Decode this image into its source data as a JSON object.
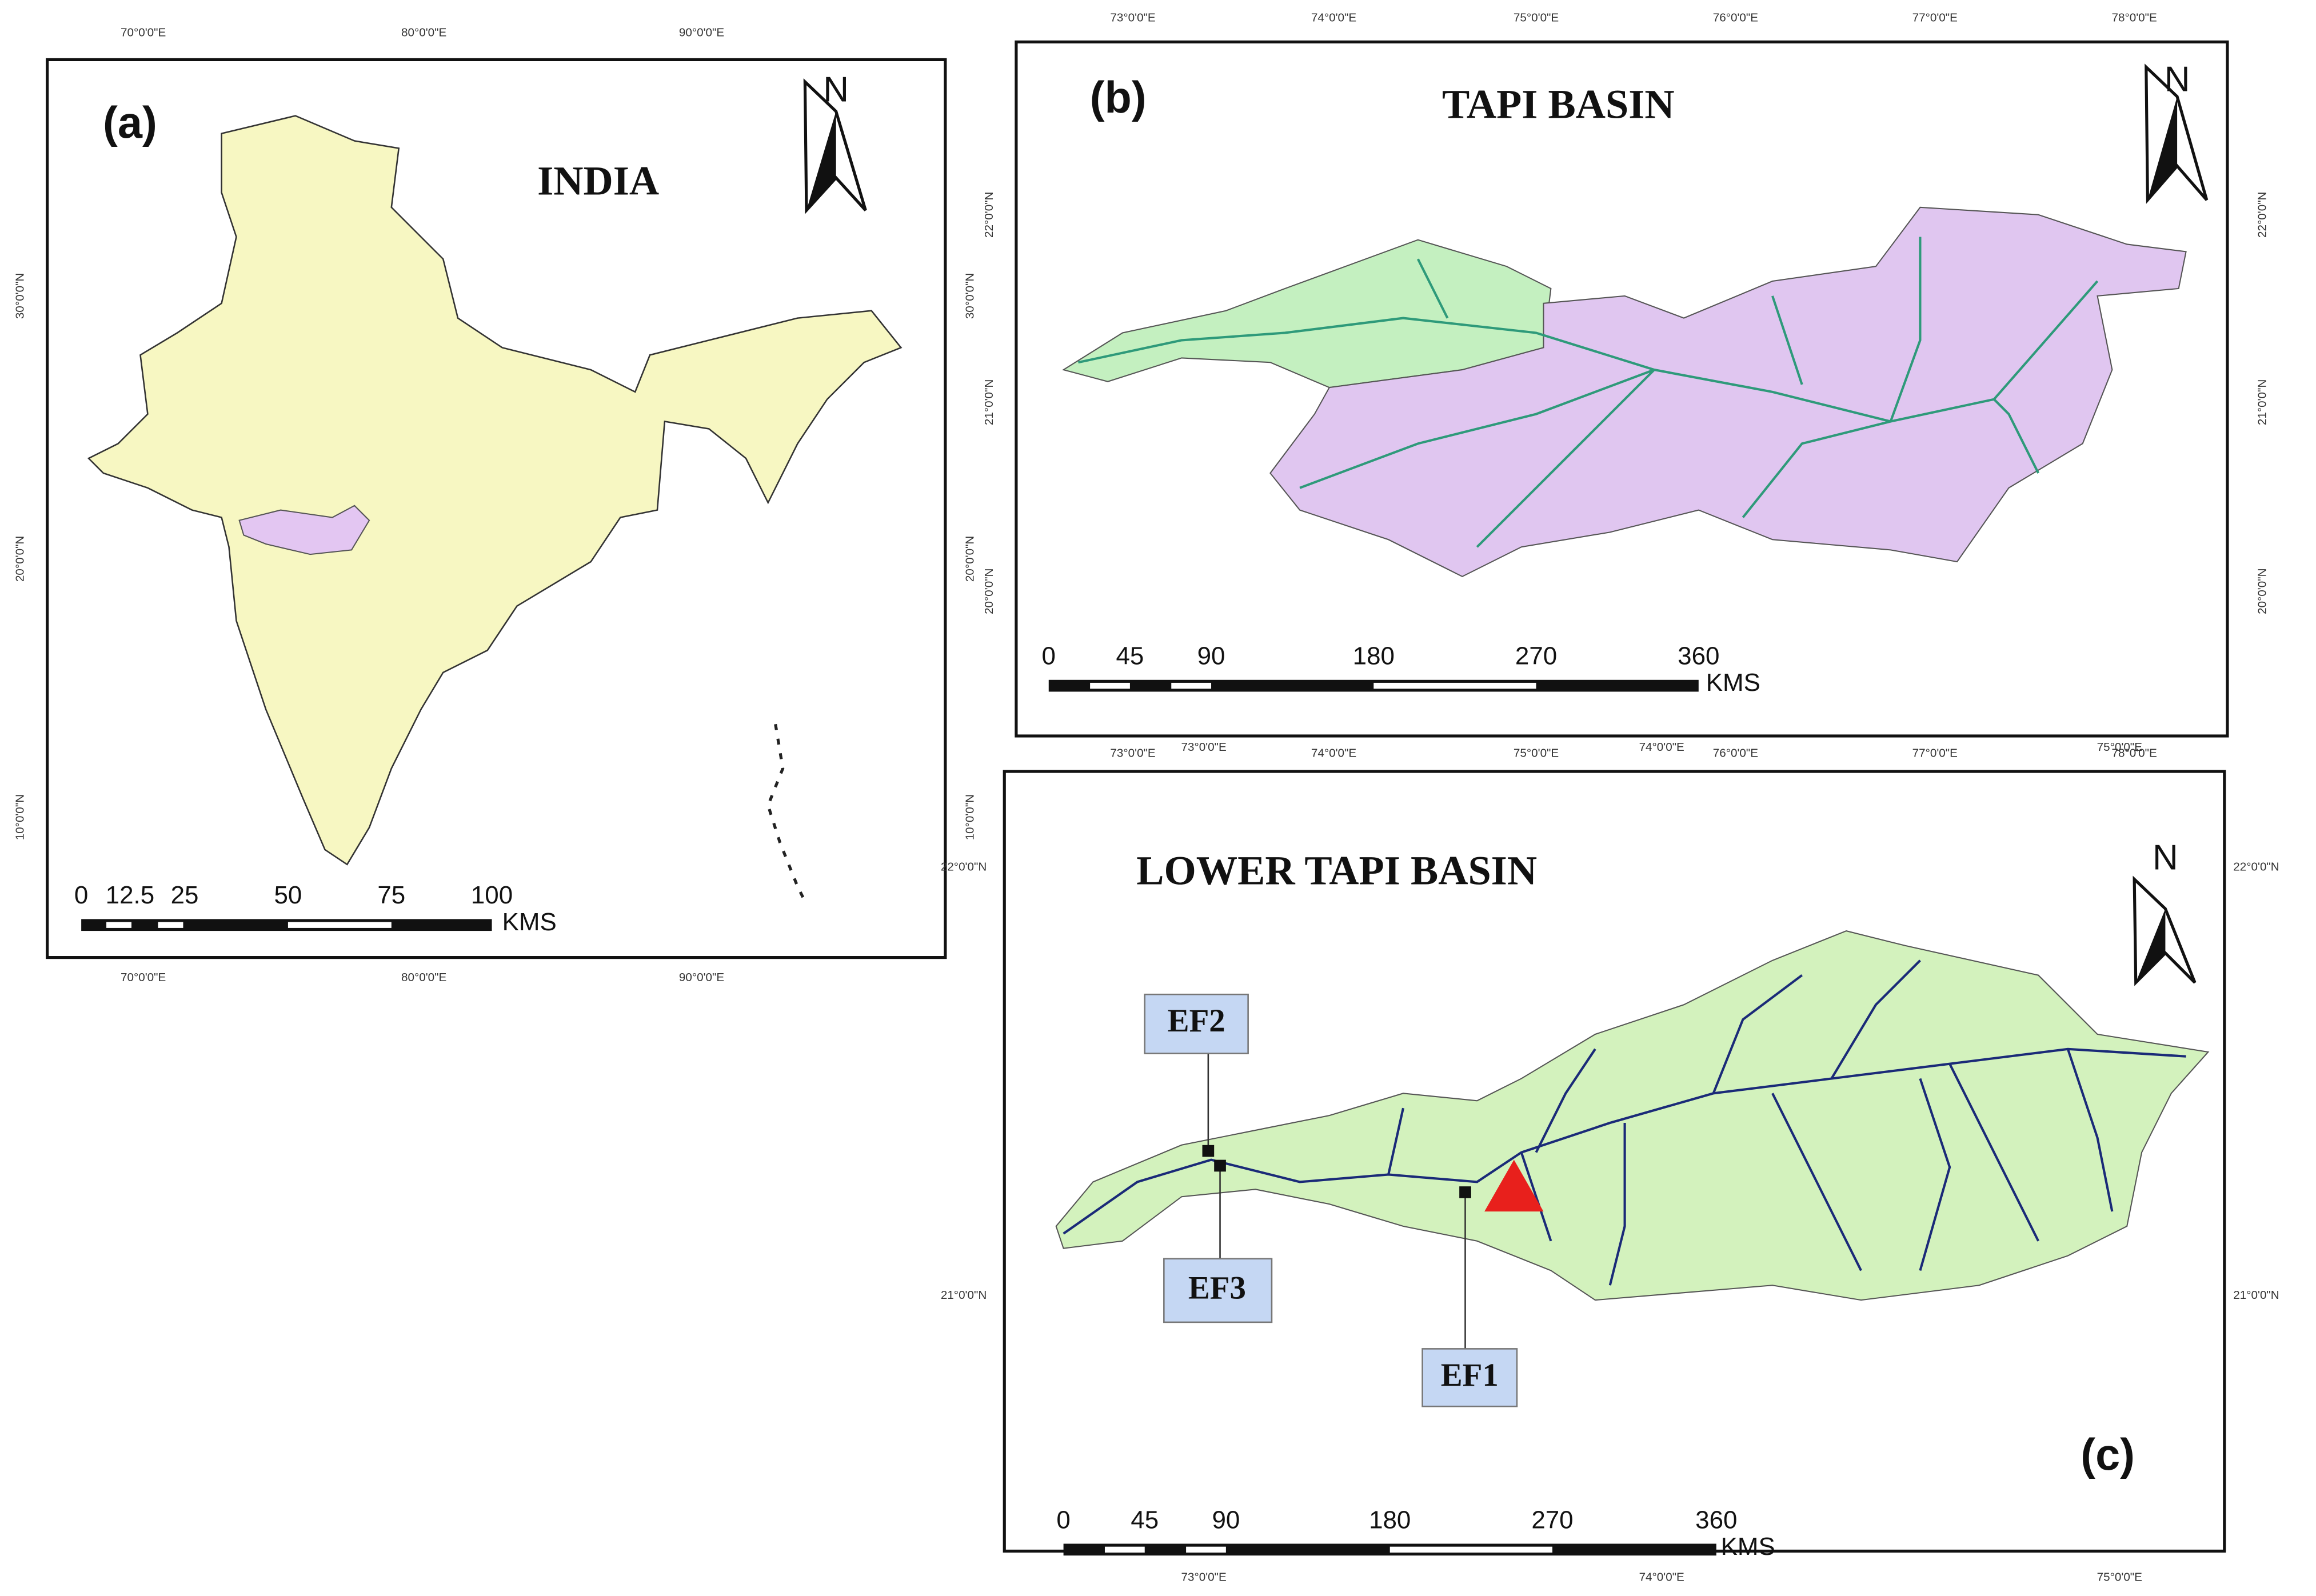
{
  "panel_a": {
    "label": "(a)",
    "title": "INDIA",
    "north": "N",
    "top_ticks": [
      "70°0'0\"E",
      "80°0'0\"E",
      "90°0'0\"E"
    ],
    "bottom_ticks": [
      "70°0'0\"E",
      "80°0'0\"E",
      "90°0'0\"E"
    ],
    "left_ticks": [
      "30°0'0\"N",
      "20°0'0\"N",
      "10°0'0\"N"
    ],
    "right_ticks": [
      "30°0'0\"N",
      "20°0'0\"N",
      "10°0'0\"N"
    ],
    "scale_labels": [
      "0",
      "12.5",
      "25",
      "50",
      "75",
      "100"
    ],
    "scale_unit": "KMS"
  },
  "panel_b": {
    "label": "(b)",
    "title": "TAPI BASIN",
    "north": "N",
    "top_ticks": [
      "73°0'0\"E",
      "74°0'0\"E",
      "75°0'0\"E",
      "76°0'0\"E",
      "77°0'0\"E",
      "78°0'0\"E"
    ],
    "bottom_ticks": [
      "73°0'0\"E",
      "74°0'0\"E",
      "75°0'0\"E",
      "76°0'0\"E",
      "77°0'0\"E",
      "78°0'0\"E"
    ],
    "left_ticks": [
      "22°0'0\"N",
      "21°0'0\"N",
      "20°0'0\"N"
    ],
    "right_ticks": [
      "22°0'0\"N",
      "21°0'0\"N",
      "20°0'0\"N"
    ],
    "scale_labels": [
      "0",
      "45",
      "90",
      "180",
      "270",
      "360"
    ],
    "scale_unit": "KMS"
  },
  "panel_c": {
    "label": "(c)",
    "title": "LOWER TAPI BASIN",
    "north": "N",
    "stations": [
      "EF1",
      "EF2",
      "EF3"
    ],
    "top_ticks": [
      "73°0'0\"E",
      "74°0'0\"E",
      "75°0'0\"E"
    ],
    "bottom_ticks": [
      "73°0'0\"E",
      "74°0'0\"E",
      "75°0'0\"E"
    ],
    "left_ticks": [
      "22°0'0\"N",
      "21°0'0\"N"
    ],
    "right_ticks": [
      "22°0'0\"N",
      "21°0'0\"N"
    ],
    "scale_labels": [
      "0",
      "45",
      "90",
      "180",
      "270",
      "360"
    ],
    "scale_unit": "KMS"
  }
}
